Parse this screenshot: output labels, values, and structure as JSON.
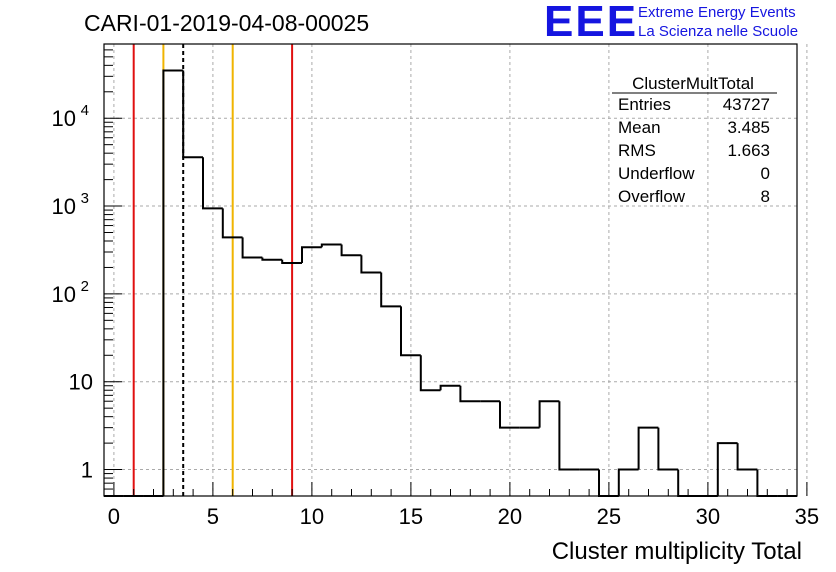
{
  "header": {
    "title": "CARI-01-2019-04-08-00025"
  },
  "logo": {
    "mark": "EEE",
    "line1": "Extreme Energy Events",
    "line2": "La Scienza nelle Scuole",
    "color": "#1515e0"
  },
  "stats_box": {
    "title": "ClusterMultTotal",
    "rows": [
      {
        "label": "Entries",
        "value": "43727"
      },
      {
        "label": "Mean",
        "value": "3.485"
      },
      {
        "label": "RMS",
        "value": "1.663"
      },
      {
        "label": "Underflow",
        "value": "0"
      },
      {
        "label": "Overflow",
        "value": "8"
      }
    ]
  },
  "chart_data": {
    "type": "histogram",
    "title": "CARI-01-2019-04-08-00025",
    "xlabel": "Cluster multiplicity Total",
    "ylabel": "",
    "x_range": [
      -0.5,
      34.5
    ],
    "y_range": [
      0.5,
      70000
    ],
    "y_scale": "log",
    "grid": true,
    "x_ticks": [
      "0",
      "5",
      "10",
      "15",
      "20",
      "25",
      "30",
      "35"
    ],
    "y_ticks": [
      {
        "value": 1,
        "base": "1",
        "exp": ""
      },
      {
        "value": 10,
        "base": "10",
        "exp": ""
      },
      {
        "value": 100,
        "base": "10",
        "exp": "2"
      },
      {
        "value": 1000,
        "base": "10",
        "exp": "3"
      },
      {
        "value": 10000,
        "base": "10",
        "exp": "4"
      }
    ],
    "bin_width": 1,
    "bin_centers": [
      0,
      1,
      2,
      3,
      4,
      5,
      6,
      7,
      8,
      9,
      10,
      11,
      12,
      13,
      14,
      15,
      16,
      17,
      18,
      19,
      20,
      21,
      22,
      23,
      24,
      25,
      26,
      27,
      28,
      29,
      30,
      31,
      32,
      33,
      34
    ],
    "counts": [
      0,
      0,
      0,
      35000,
      3600,
      940,
      440,
      260,
      245,
      225,
      340,
      365,
      275,
      175,
      72,
      20,
      8,
      9,
      6,
      6,
      3,
      3,
      6,
      1,
      1,
      0,
      1,
      3,
      1,
      0,
      0,
      2,
      1,
      0,
      0
    ],
    "series_color": "#000000",
    "vertical_lines": [
      {
        "x": 1,
        "color": "#e01010",
        "style": "solid"
      },
      {
        "x": 2.5,
        "color": "#f0b400",
        "style": "solid"
      },
      {
        "x": 3.5,
        "color": "#000000",
        "style": "dashed"
      },
      {
        "x": 6,
        "color": "#f0b400",
        "style": "solid"
      },
      {
        "x": 9,
        "color": "#e01010",
        "style": "solid"
      }
    ]
  }
}
